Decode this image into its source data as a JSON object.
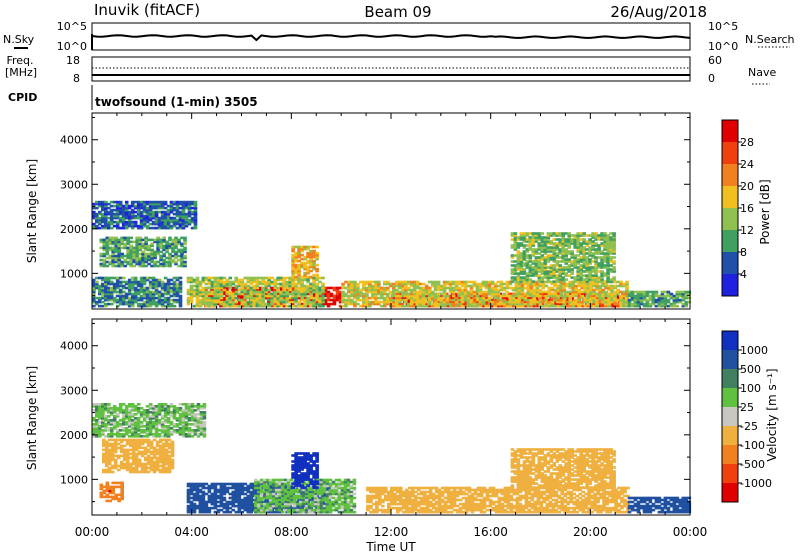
{
  "header": {
    "station": "Inuvik (fitACF)",
    "beam": "Beam 09",
    "date": "26/Aug/2018"
  },
  "nsky_panel": {
    "left_label": "N.Sky",
    "right_label": "N.Search",
    "left_ticks": [
      "10^5",
      "10^0"
    ],
    "right_ticks": [
      "10^5",
      "10^0"
    ]
  },
  "freq_panel": {
    "left_label_line1": "Freq.",
    "left_label_line2": "[MHz]",
    "right_label": "Nave",
    "left_ticks": [
      "18",
      "8"
    ],
    "right_ticks": [
      "60",
      "0"
    ]
  },
  "cpid": {
    "label": "CPID",
    "program": "twofsound (1-min) 3505"
  },
  "colors": {
    "power": [
      "#2020e0",
      "#2050a8",
      "#40a060",
      "#90c050",
      "#f0c020",
      "#f08020",
      "#f04010",
      "#e00000"
    ],
    "velocity": [
      "#1030c0",
      "#2050a0",
      "#408060",
      "#60c040",
      "#c8c8c0",
      "#f0b040",
      "#f08020",
      "#f04010",
      "#e00000"
    ]
  },
  "chart_data": [
    {
      "type": "heatmap",
      "name_text": "Power",
      "ylabel": "Slant Range [km]",
      "yticks": [
        "1000",
        "2000",
        "3000",
        "4000"
      ],
      "ylim": [
        200,
        4600
      ],
      "x_range_hours": [
        0,
        24
      ],
      "colorbar_label": "Power [dB]",
      "colorbar_ticks": [
        "4",
        "8",
        "12",
        "16",
        "20",
        "24",
        "28"
      ],
      "colorbar_range": [
        0,
        30
      ],
      "regions": [
        {
          "t0": 4.5,
          "t1": 10.0,
          "r0": 250,
          "r1": 700,
          "level": 28
        },
        {
          "t0": 3.8,
          "t1": 9.2,
          "r0": 250,
          "r1": 900,
          "level": 14
        },
        {
          "t0": 12.0,
          "t1": 21.3,
          "r0": 250,
          "r1": 550,
          "level": 26
        },
        {
          "t0": 10.0,
          "t1": 21.5,
          "r0": 250,
          "r1": 800,
          "level": 16
        },
        {
          "t0": 0.0,
          "t1": 3.5,
          "r0": 250,
          "r1": 900,
          "level": 8
        },
        {
          "t0": 0.3,
          "t1": 3.7,
          "r0": 1150,
          "r1": 1800,
          "level": 10
        },
        {
          "t0": 0.0,
          "t1": 4.2,
          "r0": 2000,
          "r1": 2600,
          "level": 6
        },
        {
          "t0": 8.0,
          "t1": 9.0,
          "r0": 900,
          "r1": 1600,
          "level": 18
        },
        {
          "t0": 21.5,
          "t1": 24.0,
          "r0": 250,
          "r1": 600,
          "level": 10
        },
        {
          "t0": 16.8,
          "t1": 21.0,
          "r0": 800,
          "r1": 1900,
          "level": 12
        }
      ]
    },
    {
      "type": "heatmap",
      "name_text": "Velocity",
      "ylabel": "Slant Range [km]",
      "yticks": [
        "1000",
        "2000",
        "3000",
        "4000"
      ],
      "ylim": [
        200,
        4600
      ],
      "x_range_hours": [
        0,
        24
      ],
      "xticks": [
        "00:00",
        "04:00",
        "08:00",
        "12:00",
        "16:00",
        "20:00",
        "00:00"
      ],
      "xlabel": "Time UT",
      "colorbar_label": "Velocity [m s⁻¹]",
      "colorbar_ticks": [
        "1000",
        "500",
        "100",
        "25",
        "-25",
        "-100",
        "-500",
        "-1000"
      ],
      "colorbar_range": [
        -1000,
        1000
      ],
      "regions": [
        {
          "t0": 3.8,
          "t1": 9.5,
          "r0": 250,
          "r1": 900,
          "level": 150
        },
        {
          "t0": 6.5,
          "t1": 10.5,
          "r0": 250,
          "r1": 1000,
          "level": 0
        },
        {
          "t0": 11.0,
          "t1": 21.5,
          "r0": 250,
          "r1": 800,
          "level": -200
        },
        {
          "t0": 0.4,
          "t1": 3.2,
          "r0": 1150,
          "r1": 1900,
          "level": -200
        },
        {
          "t0": 0.0,
          "t1": 4.5,
          "r0": 1950,
          "r1": 2700,
          "level": 0
        },
        {
          "t0": 0.3,
          "t1": 1.2,
          "r0": 500,
          "r1": 950,
          "level": -800
        },
        {
          "t0": 8.0,
          "t1": 9.0,
          "r0": 800,
          "r1": 1600,
          "level": 800
        },
        {
          "t0": 21.5,
          "t1": 24.0,
          "r0": 250,
          "r1": 600,
          "level": 150
        },
        {
          "t0": 16.8,
          "t1": 21.0,
          "r0": 800,
          "r1": 1700,
          "level": -150
        }
      ]
    }
  ]
}
